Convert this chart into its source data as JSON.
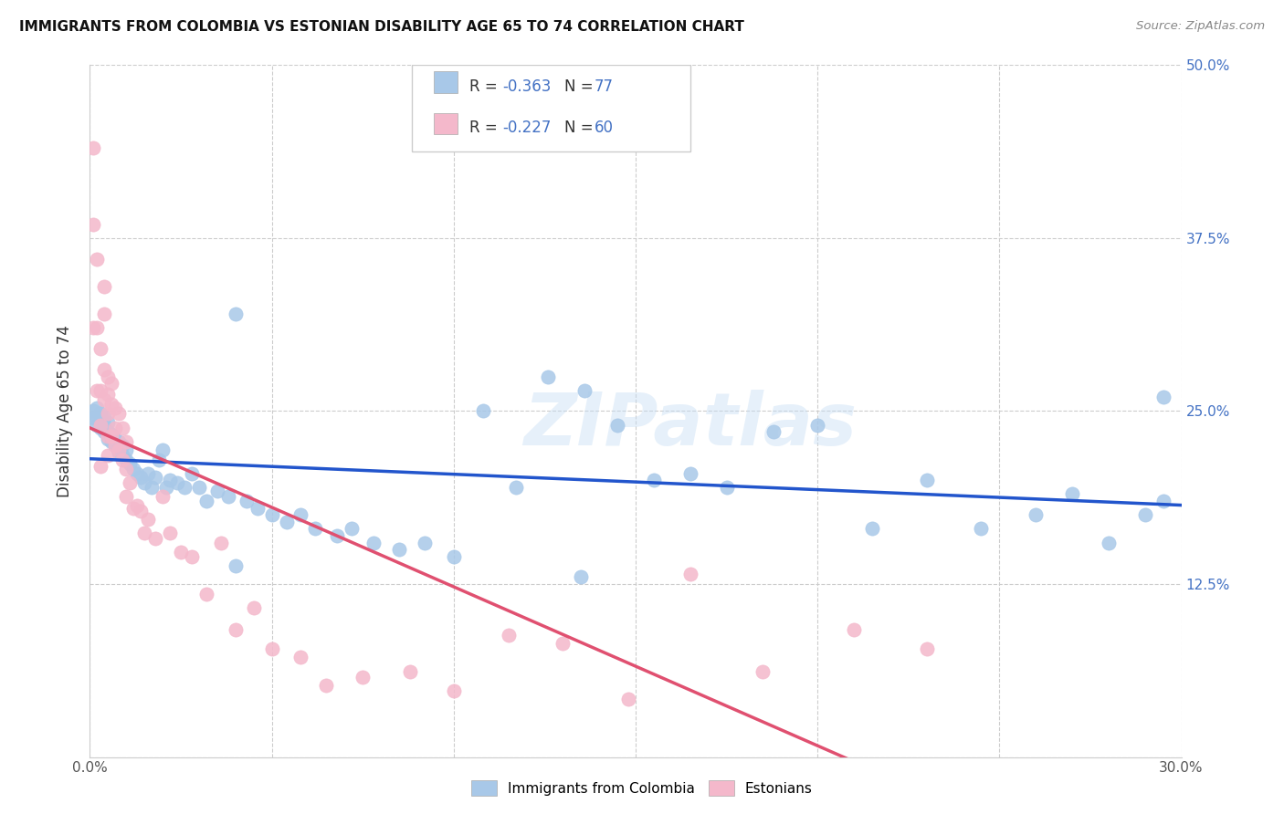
{
  "title": "IMMIGRANTS FROM COLOMBIA VS ESTONIAN DISABILITY AGE 65 TO 74 CORRELATION CHART",
  "source": "Source: ZipAtlas.com",
  "ylabel": "Disability Age 65 to 74",
  "x_min": 0.0,
  "x_max": 0.3,
  "y_min": 0.0,
  "y_max": 0.5,
  "colombia_R": -0.363,
  "colombia_N": 77,
  "estonian_R": -0.227,
  "estonian_N": 60,
  "colombia_color": "#a8c8e8",
  "estonian_color": "#f4b8cb",
  "colombia_line_color": "#2255cc",
  "estonian_line_color": "#e05070",
  "watermark_text": "ZIPatlas",
  "legend_colombia_label": "Immigrants from Colombia",
  "legend_estonian_label": "Estonians",
  "colombia_x": [
    0.001,
    0.001,
    0.002,
    0.002,
    0.002,
    0.003,
    0.003,
    0.003,
    0.004,
    0.004,
    0.004,
    0.005,
    0.005,
    0.005,
    0.006,
    0.006,
    0.007,
    0.007,
    0.008,
    0.008,
    0.009,
    0.009,
    0.01,
    0.01,
    0.011,
    0.012,
    0.013,
    0.014,
    0.015,
    0.016,
    0.017,
    0.018,
    0.019,
    0.02,
    0.021,
    0.022,
    0.024,
    0.026,
    0.028,
    0.03,
    0.032,
    0.035,
    0.038,
    0.04,
    0.043,
    0.046,
    0.05,
    0.054,
    0.058,
    0.062,
    0.068,
    0.072,
    0.078,
    0.085,
    0.092,
    0.1,
    0.108,
    0.117,
    0.126,
    0.136,
    0.145,
    0.155,
    0.165,
    0.175,
    0.188,
    0.2,
    0.215,
    0.23,
    0.245,
    0.26,
    0.27,
    0.28,
    0.29,
    0.295,
    0.04,
    0.135,
    0.295
  ],
  "colombia_y": [
    0.245,
    0.25,
    0.24,
    0.245,
    0.252,
    0.238,
    0.242,
    0.248,
    0.235,
    0.24,
    0.246,
    0.23,
    0.235,
    0.242,
    0.228,
    0.233,
    0.225,
    0.23,
    0.22,
    0.228,
    0.218,
    0.225,
    0.215,
    0.222,
    0.212,
    0.208,
    0.205,
    0.202,
    0.198,
    0.205,
    0.195,
    0.202,
    0.215,
    0.222,
    0.195,
    0.2,
    0.198,
    0.195,
    0.205,
    0.195,
    0.185,
    0.192,
    0.188,
    0.32,
    0.185,
    0.18,
    0.175,
    0.17,
    0.175,
    0.165,
    0.16,
    0.165,
    0.155,
    0.15,
    0.155,
    0.145,
    0.25,
    0.195,
    0.275,
    0.265,
    0.24,
    0.2,
    0.205,
    0.195,
    0.235,
    0.24,
    0.165,
    0.2,
    0.165,
    0.175,
    0.19,
    0.155,
    0.175,
    0.185,
    0.138,
    0.13,
    0.26
  ],
  "estonian_x": [
    0.001,
    0.001,
    0.001,
    0.002,
    0.002,
    0.002,
    0.003,
    0.003,
    0.003,
    0.003,
    0.004,
    0.004,
    0.004,
    0.004,
    0.005,
    0.005,
    0.005,
    0.005,
    0.005,
    0.006,
    0.006,
    0.006,
    0.007,
    0.007,
    0.007,
    0.008,
    0.008,
    0.009,
    0.009,
    0.01,
    0.01,
    0.01,
    0.011,
    0.012,
    0.013,
    0.014,
    0.015,
    0.016,
    0.018,
    0.02,
    0.022,
    0.025,
    0.028,
    0.032,
    0.036,
    0.04,
    0.045,
    0.05,
    0.058,
    0.065,
    0.075,
    0.088,
    0.1,
    0.115,
    0.13,
    0.148,
    0.165,
    0.185,
    0.21,
    0.23
  ],
  "estonian_y": [
    0.44,
    0.385,
    0.31,
    0.36,
    0.31,
    0.265,
    0.295,
    0.265,
    0.24,
    0.21,
    0.34,
    0.32,
    0.28,
    0.258,
    0.275,
    0.262,
    0.248,
    0.232,
    0.218,
    0.27,
    0.255,
    0.232,
    0.252,
    0.238,
    0.225,
    0.248,
    0.222,
    0.238,
    0.215,
    0.228,
    0.208,
    0.188,
    0.198,
    0.18,
    0.182,
    0.178,
    0.162,
    0.172,
    0.158,
    0.188,
    0.162,
    0.148,
    0.145,
    0.118,
    0.155,
    0.092,
    0.108,
    0.078,
    0.072,
    0.052,
    0.058,
    0.062,
    0.048,
    0.088,
    0.082,
    0.042,
    0.132,
    0.062,
    0.092,
    0.078
  ]
}
